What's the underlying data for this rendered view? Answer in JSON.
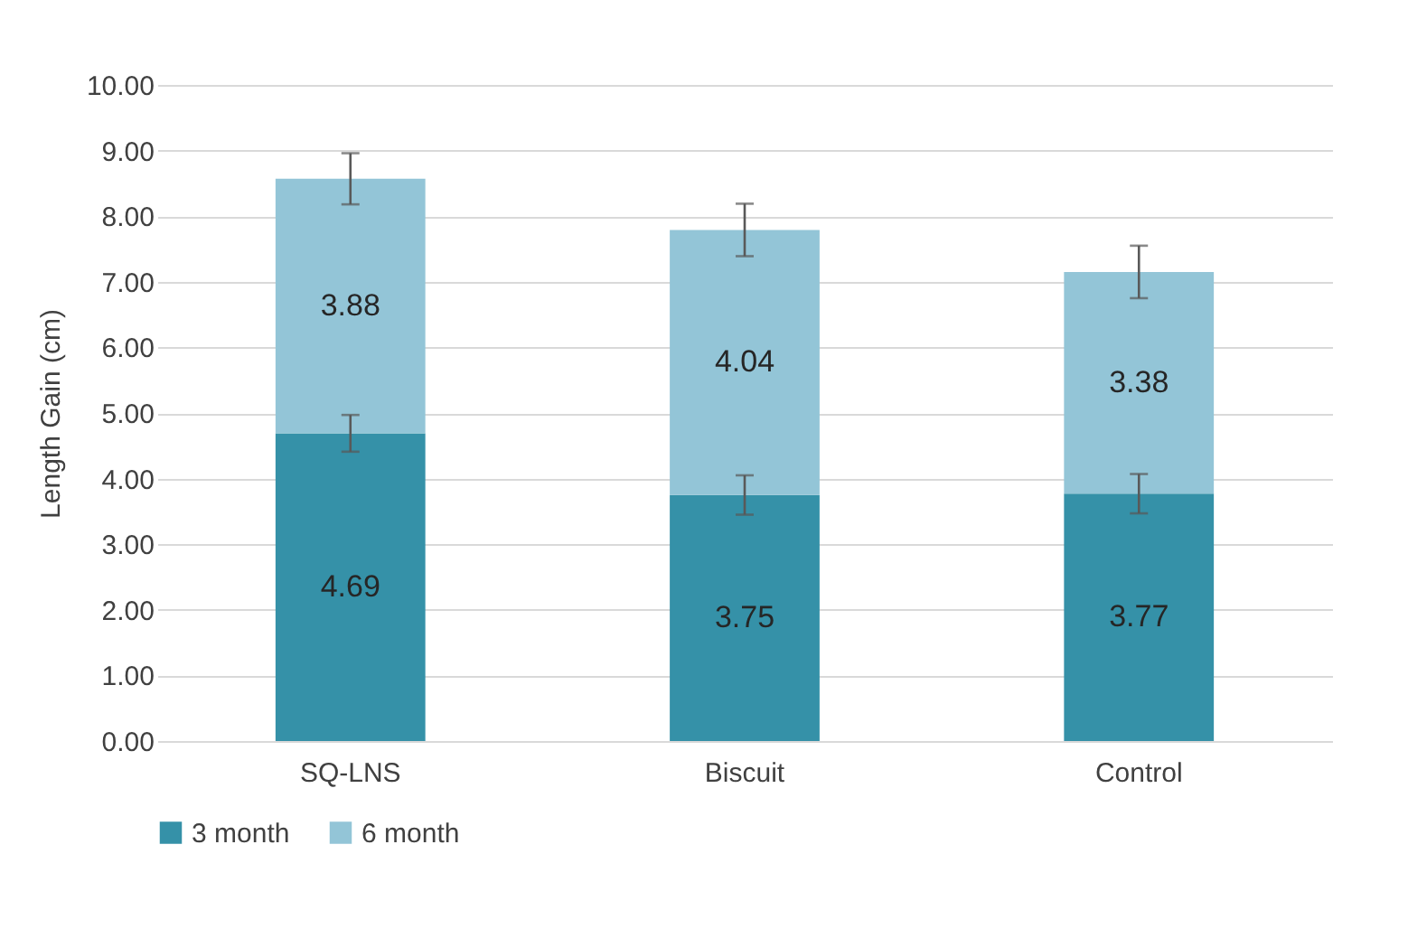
{
  "chart_data": {
    "type": "bar",
    "stacked": true,
    "ylabel": "Length Gain (cm)",
    "categories": [
      "SQ-LNS",
      "Biscuit",
      "Control"
    ],
    "series": [
      {
        "name": "3 month",
        "color": "#3591a8",
        "values": [
          4.69,
          3.75,
          3.77
        ],
        "errors": [
          0.28,
          0.3,
          0.3
        ]
      },
      {
        "name": "6 month",
        "color": "#93c5d7",
        "values": [
          3.88,
          4.04,
          3.38
        ],
        "errors": [
          0.39,
          0.4,
          0.4
        ]
      }
    ],
    "ylim": [
      0,
      10
    ],
    "yticks": [
      {
        "value": 0,
        "label": "0.00"
      },
      {
        "value": 1,
        "label": "1.00"
      },
      {
        "value": 2,
        "label": "2.00"
      },
      {
        "value": 3,
        "label": "3.00"
      },
      {
        "value": 4,
        "label": "4.00"
      },
      {
        "value": 5,
        "label": "5.00"
      },
      {
        "value": 6,
        "label": "6.00"
      },
      {
        "value": 7,
        "label": "7.00"
      },
      {
        "value": 8,
        "label": "8.00"
      },
      {
        "value": 9,
        "label": "9.00"
      },
      {
        "value": 10,
        "label": "10.00"
      }
    ],
    "grid": "y",
    "legend": "bottom",
    "data_labels": true
  }
}
